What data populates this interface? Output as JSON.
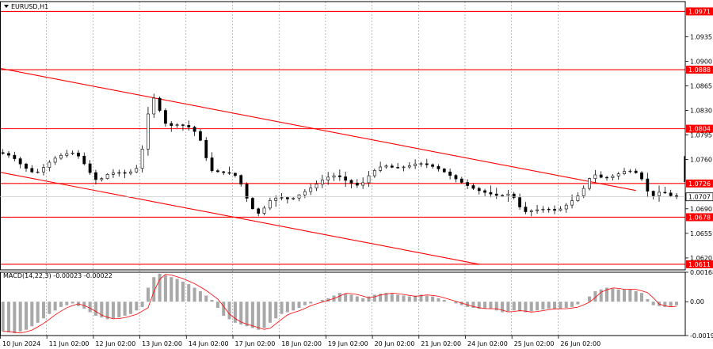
{
  "window": {
    "title": "EURUSD,H1"
  },
  "chart_data": {
    "type": "candlestick",
    "symbol": "EURUSD",
    "timeframe": "H1",
    "title": "EURUSD,H1",
    "current_price": "1.0707",
    "price_axis": {
      "ylim": [
        1.0603,
        1.0985
      ],
      "ticks": [
        "1.0971",
        "1.0935",
        "1.0900",
        "1.0888",
        "1.0865",
        "1.0830",
        "1.0804",
        "1.0795",
        "1.0760",
        "1.0726",
        "1.0707",
        "1.0690",
        "1.0678",
        "1.0655",
        "1.0620",
        "1.0611"
      ]
    },
    "time_axis": {
      "labels": [
        "10 Jun 2024",
        "11 Jun 02:00",
        "12 Jun 02:00",
        "13 Jun 02:00",
        "14 Jun 02:00",
        "17 Jun 02:00",
        "18 Jun 02:00",
        "19 Jun 02:00",
        "20 Jun 02:00",
        "21 Jun 02:00",
        "24 Jun 02:00",
        "25 Jun 02:00",
        "26 Jun 02:00"
      ]
    },
    "horizontal_levels": [
      {
        "value": 1.0971,
        "label": "1.0971"
      },
      {
        "value": 1.0888,
        "label": "1.0888"
      },
      {
        "value": 1.0804,
        "label": "1.0804"
      },
      {
        "value": 1.0726,
        "label": "1.0726"
      },
      {
        "value": 1.0678,
        "label": "1.0678"
      },
      {
        "value": 1.0611,
        "label": "1.0611"
      }
    ],
    "trendlines": [
      {
        "from": [
          0,
          1.089
        ],
        "to": [
          109,
          1.0716
        ]
      },
      {
        "from": [
          0,
          1.0742
        ],
        "to": [
          82,
          1.0611
        ]
      }
    ],
    "price_path": [
      [
        0,
        1.077
      ],
      [
        2,
        1.0765
      ],
      [
        4,
        1.075
      ],
      [
        6,
        1.074
      ],
      [
        7,
        1.0745
      ],
      [
        9,
        1.076
      ],
      [
        11,
        1.0768
      ],
      [
        13,
        1.077
      ],
      [
        14,
        1.076
      ],
      [
        15,
        1.0748
      ],
      [
        16,
        1.0735
      ],
      [
        17,
        1.0728
      ],
      [
        18,
        1.0738
      ],
      [
        20,
        1.0742
      ],
      [
        22,
        1.074
      ],
      [
        24,
        1.075
      ],
      [
        25,
        1.08
      ],
      [
        26,
        1.085
      ],
      [
        27,
        1.0845
      ],
      [
        28,
        1.0815
      ],
      [
        29,
        1.0808
      ],
      [
        31,
        1.081
      ],
      [
        33,
        1.0805
      ],
      [
        34,
        1.0795
      ],
      [
        35,
        1.078
      ],
      [
        36,
        1.0745
      ],
      [
        38,
        1.0742
      ],
      [
        40,
        1.074
      ],
      [
        41,
        1.0735
      ],
      [
        42,
        1.0715
      ],
      [
        43,
        1.0695
      ],
      [
        44,
        1.0685
      ],
      [
        45,
        1.0682
      ],
      [
        46,
        1.07
      ],
      [
        48,
        1.0707
      ],
      [
        50,
        1.0703
      ],
      [
        52,
        1.0712
      ],
      [
        54,
        1.0722
      ],
      [
        56,
        1.0734
      ],
      [
        58,
        1.0738
      ],
      [
        60,
        1.0728
      ],
      [
        62,
        1.0722
      ],
      [
        64,
        1.0742
      ],
      [
        66,
        1.0752
      ],
      [
        68,
        1.0748
      ],
      [
        70,
        1.075
      ],
      [
        72,
        1.0755
      ],
      [
        74,
        1.0752
      ],
      [
        76,
        1.0745
      ],
      [
        78,
        1.0735
      ],
      [
        80,
        1.0725
      ],
      [
        82,
        1.0717
      ],
      [
        84,
        1.0712
      ],
      [
        86,
        1.0708
      ],
      [
        88,
        1.0712
      ],
      [
        89,
        1.07
      ],
      [
        90,
        1.0685
      ],
      [
        92,
        1.0688
      ],
      [
        94,
        1.069
      ],
      [
        96,
        1.0687
      ],
      [
        98,
        1.0698
      ],
      [
        100,
        1.0712
      ],
      [
        102,
        1.074
      ],
      [
        104,
        1.0733
      ],
      [
        106,
        1.0738
      ],
      [
        108,
        1.0745
      ],
      [
        110,
        1.074
      ],
      [
        111,
        1.0725
      ],
      [
        112,
        1.0705
      ],
      [
        113,
        1.0712
      ],
      [
        114,
        1.0715
      ],
      [
        115,
        1.071
      ],
      [
        116,
        1.0707
      ]
    ],
    "macd": {
      "label": "MACD(14,22,3) -0.00023 -0.00022",
      "params": [
        14,
        22,
        3
      ],
      "main": -0.00023,
      "signal": -0.00022,
      "ylim": [
        -0.00193,
        0.00168
      ],
      "ticks": [
        "0.00168",
        "0.00",
        "-0.00193"
      ],
      "histogram_path": [
        [
          0,
          -0.0017
        ],
        [
          2,
          -0.0018
        ],
        [
          4,
          -0.0016
        ],
        [
          6,
          -0.0012
        ],
        [
          8,
          -0.0007
        ],
        [
          10,
          -0.0003
        ],
        [
          12,
          -0.0001
        ],
        [
          14,
          -0.0004
        ],
        [
          16,
          -0.0008
        ],
        [
          18,
          -0.001
        ],
        [
          20,
          -0.0009
        ],
        [
          22,
          -0.0007
        ],
        [
          24,
          -0.0003
        ],
        [
          25,
          0.0008
        ],
        [
          26,
          0.0014
        ],
        [
          27,
          0.0016
        ],
        [
          28,
          0.0015
        ],
        [
          30,
          0.0013
        ],
        [
          32,
          0.001
        ],
        [
          34,
          0.0006
        ],
        [
          36,
          0.0001
        ],
        [
          38,
          -0.0008
        ],
        [
          40,
          -0.0012
        ],
        [
          42,
          -0.0014
        ],
        [
          44,
          -0.0016
        ],
        [
          45,
          -0.0015
        ],
        [
          46,
          -0.0012
        ],
        [
          48,
          -0.0007
        ],
        [
          50,
          -0.0005
        ],
        [
          52,
          -0.0002
        ],
        [
          54,
          0.0
        ],
        [
          56,
          0.0002
        ],
        [
          58,
          0.0005
        ],
        [
          60,
          0.0004
        ],
        [
          62,
          0.0002
        ],
        [
          64,
          0.0004
        ],
        [
          66,
          0.0005
        ],
        [
          68,
          0.0004
        ],
        [
          70,
          0.0003
        ],
        [
          72,
          0.0004
        ],
        [
          74,
          0.0003
        ],
        [
          76,
          0.0001
        ],
        [
          78,
          -0.0001
        ],
        [
          80,
          -0.0003
        ],
        [
          82,
          -0.0004
        ],
        [
          84,
          -0.0004
        ],
        [
          86,
          -0.0006
        ],
        [
          88,
          -0.0005
        ],
        [
          90,
          -0.0006
        ],
        [
          92,
          -0.0005
        ],
        [
          94,
          -0.0004
        ],
        [
          96,
          -0.0004
        ],
        [
          98,
          -0.0003
        ],
        [
          100,
          0.0
        ],
        [
          102,
          0.0006
        ],
        [
          104,
          0.0008
        ],
        [
          106,
          0.0007
        ],
        [
          108,
          0.0007
        ],
        [
          110,
          0.0005
        ],
        [
          112,
          -0.0002
        ],
        [
          114,
          -0.0003
        ],
        [
          116,
          -0.0002
        ]
      ]
    },
    "grid": "dotted-vertical",
    "colors": {
      "levels": "#ff0000",
      "trendlines": "#ff0000",
      "candles": "#000000",
      "macd_histogram": "#a8a8a8",
      "macd_signal": "#ff0000",
      "grid": "#8c8c8c",
      "price_tag": "#ffffff"
    }
  }
}
